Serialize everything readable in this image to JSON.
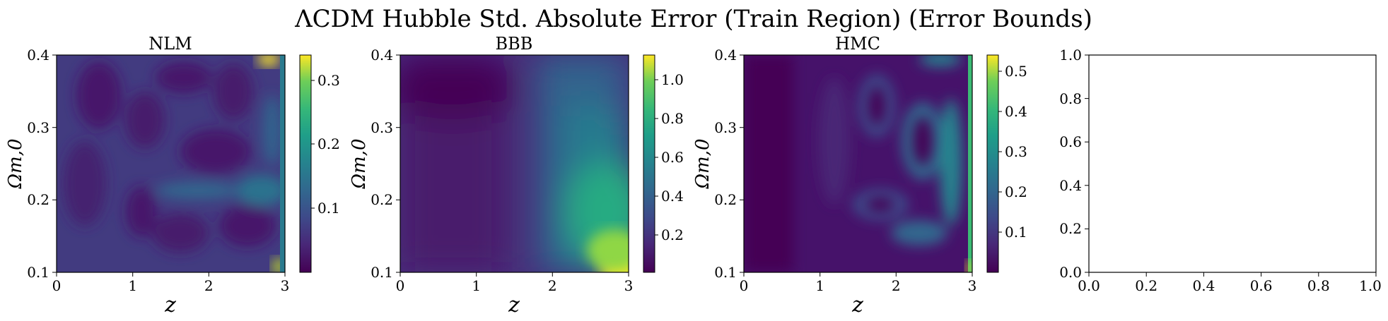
{
  "figure": {
    "title": "ΛCDM Hubble Std. Absolute Error (Train Region) (Error Bounds)"
  },
  "chart_data": [
    {
      "type": "heatmap",
      "title": "NLM",
      "xlabel": "z",
      "ylabel": "Ωm,0",
      "xlim": [
        0,
        3
      ],
      "ylim": [
        0.1,
        0.4
      ],
      "xticks": [
        "0",
        "1",
        "2",
        "3"
      ],
      "yticks": [
        "0.1",
        "0.2",
        "0.3",
        "0.4"
      ],
      "colormap": "viridis",
      "colorbar": {
        "range": [
          0.0,
          0.34
        ],
        "ticks": [
          "0.1",
          "0.2",
          "0.3"
        ]
      }
    },
    {
      "type": "heatmap",
      "title": "BBB",
      "xlabel": "z",
      "ylabel": "Ωm,0",
      "xlim": [
        0,
        3
      ],
      "ylim": [
        0.1,
        0.4
      ],
      "xticks": [
        "0",
        "1",
        "2",
        "3"
      ],
      "yticks": [
        "0.1",
        "0.2",
        "0.3",
        "0.4"
      ],
      "colormap": "viridis",
      "colorbar": {
        "range": [
          0.03,
          1.15
        ],
        "ticks": [
          "0.2",
          "0.4",
          "0.6",
          "0.8",
          "1.0"
        ]
      }
    },
    {
      "type": "heatmap",
      "title": "HMC",
      "xlabel": "z",
      "ylabel": "Ωm,0",
      "xlim": [
        0,
        3
      ],
      "ylim": [
        0.1,
        0.4
      ],
      "xticks": [
        "0",
        "1",
        "2",
        "3"
      ],
      "yticks": [
        "0.1",
        "0.2",
        "0.3",
        "0.4"
      ],
      "colormap": "viridis",
      "colorbar": {
        "range": [
          0.0,
          0.54
        ],
        "ticks": [
          "0.1",
          "0.2",
          "0.3",
          "0.4",
          "0.5"
        ]
      }
    },
    {
      "type": "empty",
      "title": "",
      "xlim": [
        0.0,
        1.0
      ],
      "ylim": [
        0.0,
        1.0
      ],
      "xticks": [
        "0.0",
        "0.2",
        "0.4",
        "0.6",
        "0.8",
        "1.0"
      ],
      "yticks": [
        "0.0",
        "0.2",
        "0.4",
        "0.6",
        "0.8",
        "1.0"
      ]
    }
  ]
}
